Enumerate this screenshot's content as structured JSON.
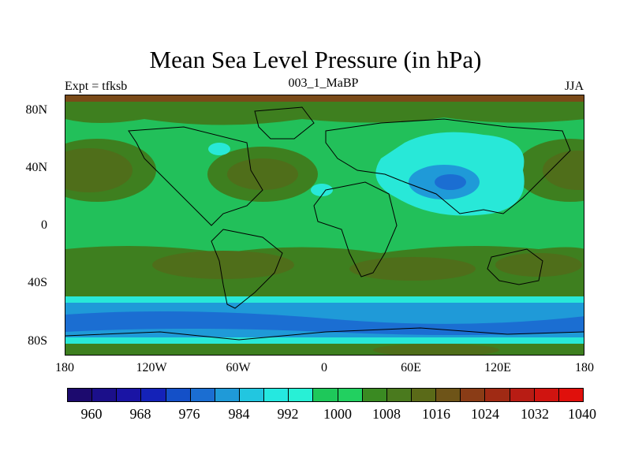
{
  "header": {
    "title": "Mean Sea Level Pressure (in hPa)",
    "left": "Expt = tfksb",
    "center": "003_1_MaBP",
    "right": "JJA"
  },
  "map": {
    "lat_labels": [
      "80N",
      "40N",
      "0",
      "40S",
      "80S"
    ],
    "lon_labels": [
      "180",
      "120W",
      "60W",
      "0",
      "60E",
      "120E",
      "180"
    ]
  },
  "colorbar": {
    "colors": [
      "#1c0a6e",
      "#1b0f8a",
      "#1a14a4",
      "#1422b8",
      "#1450c8",
      "#1b6ed2",
      "#1f9ad8",
      "#22c6e0",
      "#25e8e0",
      "#28f0d6",
      "#1ec85a",
      "#22d060",
      "#3a8a22",
      "#4a7a1e",
      "#5a6a18",
      "#6e5418",
      "#8a3c16",
      "#a02a14",
      "#b81c14",
      "#d01410",
      "#e0100c"
    ],
    "labels": [
      "960",
      "968",
      "976",
      "984",
      "992",
      "1000",
      "1008",
      "1016",
      "1024",
      "1032",
      "1040"
    ]
  }
}
